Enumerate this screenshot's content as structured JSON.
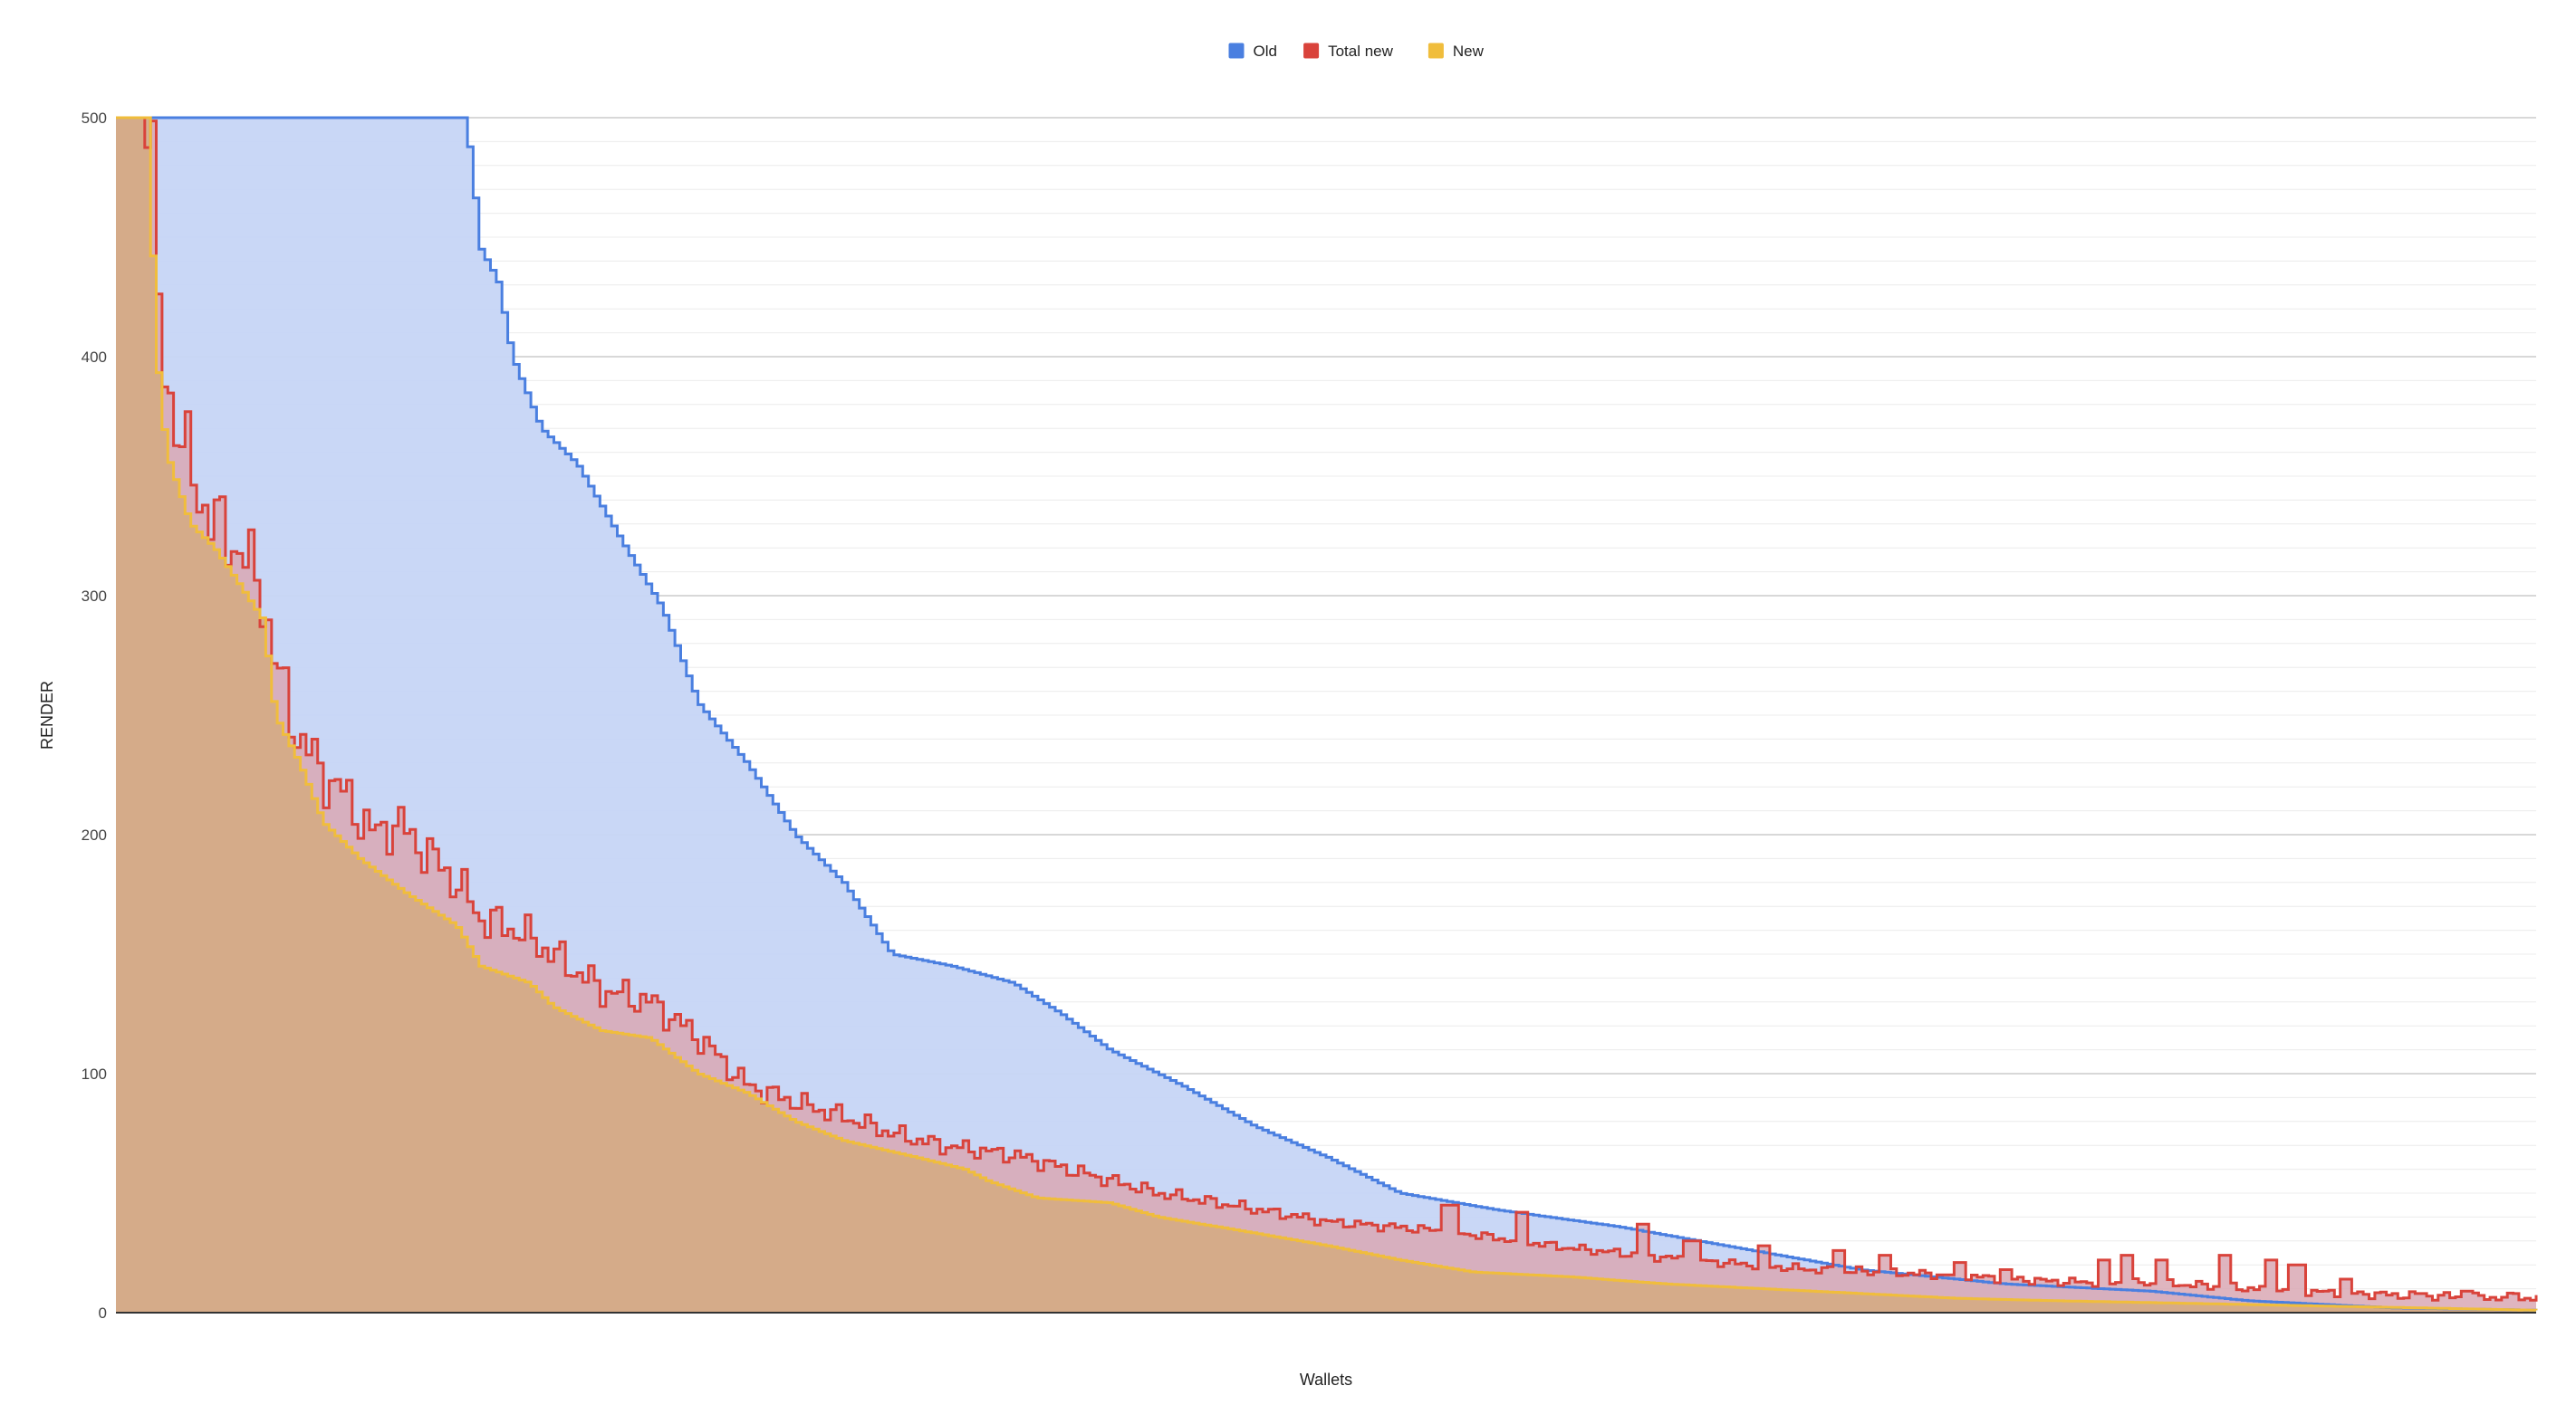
{
  "chart_data": {
    "type": "area",
    "step": true,
    "title": "",
    "xlabel": "Wallets",
    "ylabel": "RENDER",
    "ylim": [
      0,
      500
    ],
    "yticks": [
      0,
      100,
      200,
      300,
      400,
      500
    ],
    "grid": true,
    "minor_gridlines_per_major": 10,
    "legend_position": "top-center",
    "series": [
      {
        "name": "Old",
        "color": "#4a7fe0",
        "fill": "#c6d5f6",
        "breakpoints": [
          [
            0,
            560
          ],
          [
            0.143,
            500
          ],
          [
            0.145,
            490
          ],
          [
            0.15,
            445
          ],
          [
            0.157,
            432
          ],
          [
            0.163,
            400
          ],
          [
            0.175,
            370
          ],
          [
            0.19,
            355
          ],
          [
            0.21,
            320
          ],
          [
            0.225,
            295
          ],
          [
            0.24,
            255
          ],
          [
            0.26,
            230
          ],
          [
            0.28,
            200
          ],
          [
            0.3,
            180
          ],
          [
            0.32,
            150
          ],
          [
            0.345,
            145
          ],
          [
            0.37,
            138
          ],
          [
            0.39,
            125
          ],
          [
            0.41,
            110
          ],
          [
            0.44,
            95
          ],
          [
            0.47,
            78
          ],
          [
            0.5,
            65
          ],
          [
            0.53,
            50
          ],
          [
            0.57,
            43
          ],
          [
            0.62,
            36
          ],
          [
            0.67,
            27
          ],
          [
            0.72,
            18
          ],
          [
            0.78,
            12
          ],
          [
            0.84,
            9
          ],
          [
            0.88,
            5
          ],
          [
            0.94,
            2
          ],
          [
            1.0,
            1
          ]
        ]
      },
      {
        "name": "Total new",
        "color": "#d9433b",
        "fill": "#d9a8b4",
        "breakpoints": [
          [
            0,
            560
          ],
          [
            0.014,
            500
          ],
          [
            0.015,
            425
          ],
          [
            0.02,
            390
          ],
          [
            0.025,
            370
          ],
          [
            0.03,
            350
          ],
          [
            0.04,
            330
          ],
          [
            0.05,
            320
          ],
          [
            0.06,
            300
          ],
          [
            0.065,
            270
          ],
          [
            0.075,
            240
          ],
          [
            0.085,
            225
          ],
          [
            0.095,
            215
          ],
          [
            0.105,
            200
          ],
          [
            0.115,
            205
          ],
          [
            0.13,
            190
          ],
          [
            0.14,
            180
          ],
          [
            0.15,
            165
          ],
          [
            0.165,
            160
          ],
          [
            0.18,
            150
          ],
          [
            0.2,
            135
          ],
          [
            0.22,
            130
          ],
          [
            0.24,
            115
          ],
          [
            0.26,
            95
          ],
          [
            0.28,
            88
          ],
          [
            0.3,
            82
          ],
          [
            0.32,
            75
          ],
          [
            0.34,
            70
          ],
          [
            0.37,
            66
          ],
          [
            0.4,
            58
          ],
          [
            0.43,
            50
          ],
          [
            0.46,
            45
          ],
          [
            0.5,
            38
          ],
          [
            0.55,
            34
          ],
          [
            0.6,
            27
          ],
          [
            0.65,
            22
          ],
          [
            0.7,
            18
          ],
          [
            0.75,
            16
          ],
          [
            0.8,
            13
          ],
          [
            0.85,
            12
          ],
          [
            0.9,
            9
          ],
          [
            0.95,
            7
          ],
          [
            1.0,
            6
          ]
        ]
      },
      {
        "name": "New",
        "color": "#f0bd3c",
        "fill": "#d5aa80",
        "breakpoints": [
          [
            0,
            560
          ],
          [
            0.013,
            500
          ],
          [
            0.015,
            410
          ],
          [
            0.02,
            360
          ],
          [
            0.03,
            330
          ],
          [
            0.04,
            320
          ],
          [
            0.06,
            290
          ],
          [
            0.065,
            250
          ],
          [
            0.075,
            230
          ],
          [
            0.085,
            205
          ],
          [
            0.1,
            190
          ],
          [
            0.12,
            175
          ],
          [
            0.14,
            162
          ],
          [
            0.15,
            145
          ],
          [
            0.17,
            138
          ],
          [
            0.18,
            128
          ],
          [
            0.2,
            118
          ],
          [
            0.22,
            115
          ],
          [
            0.24,
            100
          ],
          [
            0.26,
            92
          ],
          [
            0.28,
            80
          ],
          [
            0.3,
            72
          ],
          [
            0.33,
            65
          ],
          [
            0.35,
            60
          ],
          [
            0.36,
            55
          ],
          [
            0.38,
            48
          ],
          [
            0.41,
            46
          ],
          [
            0.43,
            40
          ],
          [
            0.46,
            35
          ],
          [
            0.5,
            28
          ],
          [
            0.53,
            22
          ],
          [
            0.56,
            17
          ],
          [
            0.6,
            15
          ],
          [
            0.64,
            12
          ],
          [
            0.68,
            10
          ],
          [
            0.72,
            8
          ],
          [
            0.76,
            6
          ],
          [
            0.8,
            5
          ],
          [
            0.85,
            4
          ],
          [
            0.9,
            3
          ],
          [
            0.95,
            2
          ],
          [
            1.0,
            1
          ]
        ]
      }
    ],
    "total_new_spikes": [
      [
        0.55,
        45
      ],
      [
        0.58,
        42
      ],
      [
        0.63,
        37
      ],
      [
        0.65,
        30
      ],
      [
        0.68,
        28
      ],
      [
        0.71,
        26
      ],
      [
        0.73,
        24
      ],
      [
        0.76,
        21
      ],
      [
        0.78,
        18
      ],
      [
        0.82,
        22
      ],
      [
        0.83,
        24
      ],
      [
        0.845,
        22
      ],
      [
        0.87,
        24
      ],
      [
        0.89,
        22
      ],
      [
        0.9,
        20
      ],
      [
        0.92,
        14
      ],
      [
        0.95,
        8
      ],
      [
        0.97,
        9
      ],
      [
        0.99,
        8
      ]
    ]
  }
}
